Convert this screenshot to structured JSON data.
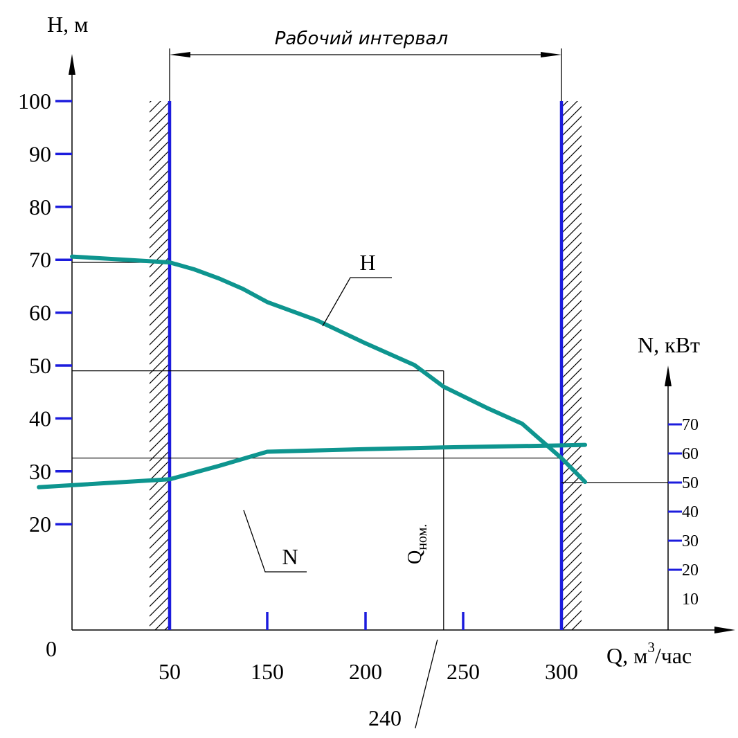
{
  "chart_data": {
    "type": "line",
    "left_axis": {
      "label": "H, м",
      "ticks": [
        100,
        90,
        80,
        70,
        60,
        50,
        40,
        30,
        20
      ],
      "ylim": [
        0,
        100
      ]
    },
    "right_axis": {
      "label": "N, кВт",
      "ticks": [
        70,
        60,
        50,
        40,
        30,
        20
      ],
      "unlabeled_ticks": [
        10
      ],
      "ylim": [
        0,
        100
      ]
    },
    "x_axis": {
      "label_prefix": "Q, м",
      "label_sup": "3",
      "label_suffix": "/час",
      "origin_label": "0",
      "ticks": [
        50,
        150,
        200,
        250,
        300
      ],
      "xlim": [
        0,
        300
      ]
    },
    "working_interval": {
      "label": "Рабочий интервал",
      "from": 50,
      "to": 300
    },
    "nominal": {
      "label": "Q",
      "label_sub": "ном.",
      "q": 240,
      "q_label": "240"
    },
    "reference_lines": {
      "h_values": [
        69.5,
        49,
        32.5
      ],
      "n_value": 50
    },
    "series": [
      {
        "name": "H",
        "x": [
          0,
          50,
          75,
          100,
          125,
          150,
          175,
          200,
          225,
          240,
          262,
          280,
          300,
          312
        ],
        "y": [
          70.6,
          69.5,
          68.2,
          66.5,
          64.5,
          62,
          58.6,
          54.2,
          50.1,
          46,
          42,
          39,
          32.5,
          28
        ]
      },
      {
        "name": "N",
        "x": [
          -17,
          50,
          100,
          150,
          200,
          250,
          300,
          312
        ],
        "y": [
          27,
          28.5,
          31,
          33.7,
          34.2,
          34.6,
          34.9,
          35
        ]
      }
    ],
    "colors": {
      "curve": "#0e958f",
      "tick": "#1c1cdd",
      "border_line": "#1c1cdd",
      "axis": "#000000"
    }
  }
}
